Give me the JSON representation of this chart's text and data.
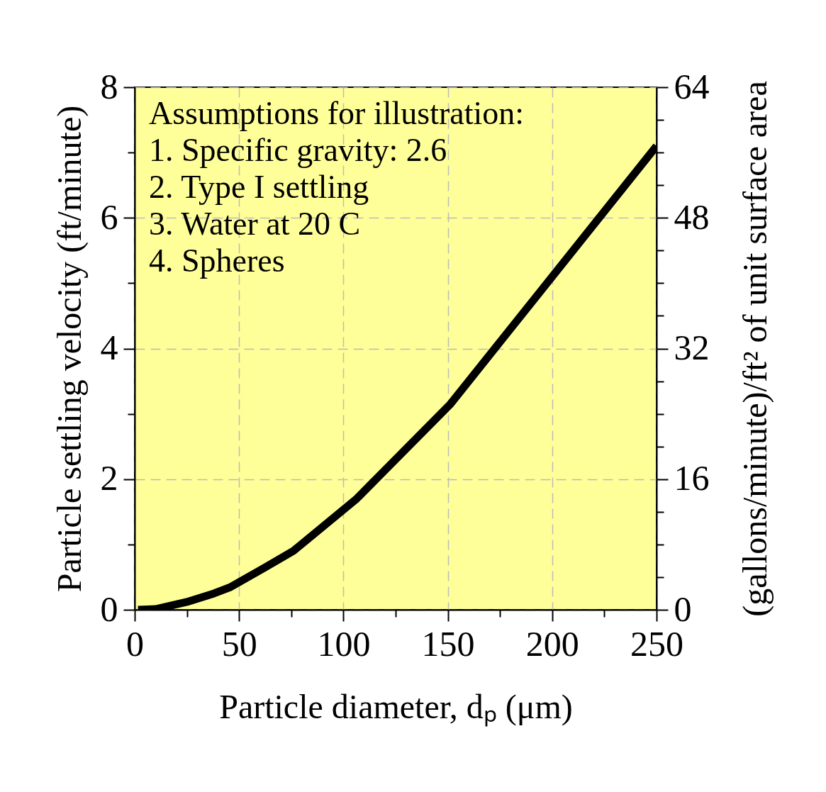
{
  "chart_data": {
    "type": "line",
    "xlabel": "Particle diameter, dₚ (μm)",
    "ylabel": "Particle settling velocity (ft/minute)",
    "y2label": "(gallons/minute)/ft² of unit surface area",
    "annotations": [
      "Assumptions for illustration:",
      "1. Specific gravity: 2.6",
      "2. Type I settling",
      "3. Water at 20 C",
      "4. Spheres"
    ],
    "x": [
      1.6,
      10,
      25,
      38,
      46,
      62,
      76,
      106,
      151,
      180,
      250
    ],
    "series": [
      {
        "color": "#000000",
        "values": [
          0,
          0.01,
          0.12,
          0.25,
          0.35,
          0.64,
          0.9,
          1.69,
          3.14,
          4.3,
          7.1
        ]
      }
    ],
    "xlim": [
      0,
      250
    ],
    "xticks": [
      0,
      {
        "value": 25,
        "label": null
      },
      50,
      {
        "value": 75,
        "label": null
      },
      100,
      {
        "value": 125,
        "label": null
      },
      150,
      {
        "value": 175,
        "label": null
      },
      200,
      {
        "value": 225,
        "label": null
      },
      250
    ],
    "ylim": [
      0,
      8
    ],
    "yticks": [
      0,
      {
        "value": 1,
        "label": null
      },
      2,
      {
        "value": 3,
        "label": null
      },
      4,
      {
        "value": 5,
        "label": null
      },
      6,
      {
        "value": 7,
        "label": null
      },
      8
    ],
    "y2lim": [
      0,
      64
    ],
    "y2ticks": [
      0,
      {
        "value": 4,
        "label": null
      },
      {
        "value": 8,
        "label": null
      },
      {
        "value": 12,
        "label": null
      },
      16,
      {
        "value": 20,
        "label": null
      },
      {
        "value": 24,
        "label": null
      },
      {
        "value": 28,
        "label": null
      },
      32,
      {
        "value": 36,
        "label": null
      },
      {
        "value": 40,
        "label": null
      },
      {
        "value": 44,
        "label": null
      },
      48,
      {
        "value": 52,
        "label": null
      },
      {
        "value": 56,
        "label": null
      },
      {
        "value": 60,
        "label": null
      },
      64
    ],
    "grid": true,
    "line_style": "solid",
    "marker": "none"
  }
}
